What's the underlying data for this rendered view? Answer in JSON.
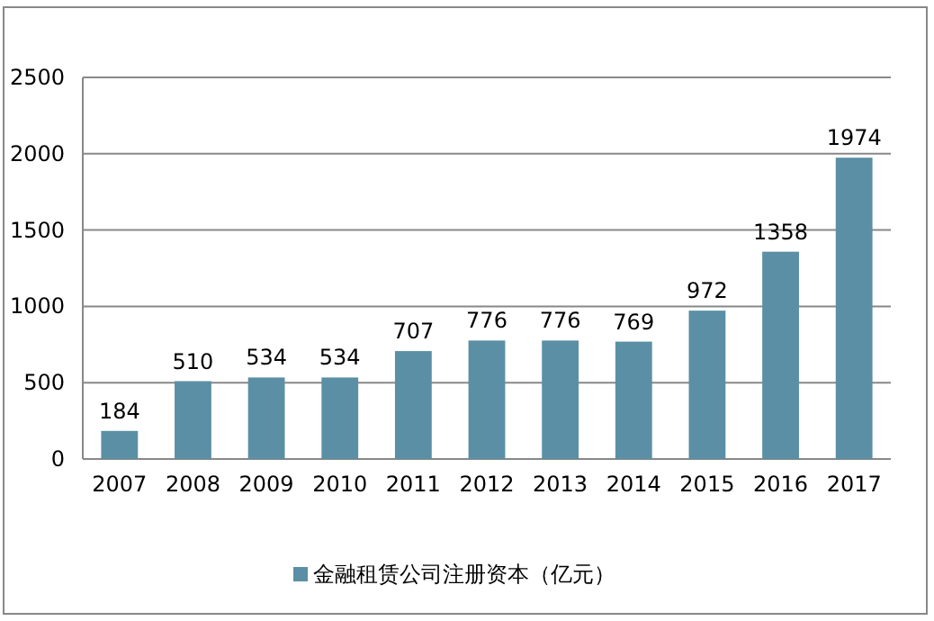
{
  "chart_data": {
    "type": "bar",
    "categories": [
      "2007",
      "2008",
      "2009",
      "2010",
      "2011",
      "2012",
      "2013",
      "2014",
      "2015",
      "2016",
      "2017"
    ],
    "series": [
      {
        "name": "金融租赁公司注册资本（亿元）",
        "color": "#5b8fa5",
        "values": [
          184,
          510,
          534,
          534,
          707,
          776,
          776,
          769,
          972,
          1358,
          1974
        ]
      }
    ],
    "ylim": [
      0,
      2500
    ],
    "yticks": [
      0,
      500,
      1000,
      1500,
      2000,
      2500
    ],
    "grid": "y",
    "legend": "bottom",
    "data_labels": true
  }
}
